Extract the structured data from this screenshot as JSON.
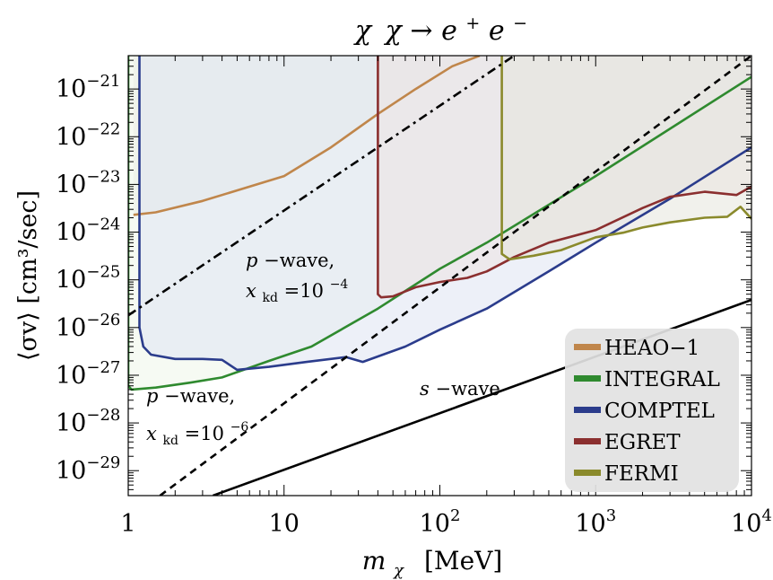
{
  "chart_data": {
    "type": "line",
    "title_parts": {
      "chi1": "χ",
      "chi2": "χ",
      "arrow": "→",
      "e1": "e",
      "plus": "+",
      "e2": "e",
      "minus": "−"
    },
    "xlabel_parts": {
      "m": "m",
      "sub": "χ",
      "unit": "[MeV]"
    },
    "ylabel": "⟨σv⟩  [cm³/sec]",
    "x_scale": "log",
    "y_scale": "log",
    "xlim": [
      1,
      10000
    ],
    "ylim": [
      3e-30,
      5e-21
    ],
    "x_ticks": [
      {
        "value": 1,
        "base": "1",
        "exp": ""
      },
      {
        "value": 10,
        "base": "10",
        "exp": ""
      },
      {
        "value": 100,
        "base": "10",
        "exp": "2"
      },
      {
        "value": 1000,
        "base": "10",
        "exp": "3"
      },
      {
        "value": 10000,
        "base": "10",
        "exp": "4"
      }
    ],
    "y_ticks": [
      {
        "value": 1e-21,
        "base": "10",
        "exp": "−21"
      },
      {
        "value": 1e-22,
        "base": "10",
        "exp": "−22"
      },
      {
        "value": 1e-23,
        "base": "10",
        "exp": "−23"
      },
      {
        "value": 1e-24,
        "base": "10",
        "exp": "−24"
      },
      {
        "value": 1e-25,
        "base": "10",
        "exp": "−25"
      },
      {
        "value": 1e-26,
        "base": "10",
        "exp": "−26"
      },
      {
        "value": 1e-27,
        "base": "10",
        "exp": "−27"
      },
      {
        "value": 1e-28,
        "base": "10",
        "exp": "−28"
      },
      {
        "value": 1e-29,
        "base": "10",
        "exp": "−29"
      }
    ],
    "legend_position": "bottom-right",
    "series": [
      {
        "name": "HEAO−1",
        "color": "#c0864b",
        "fill": "#e8e4e0",
        "points": [
          [
            1.08,
            2.3e-24
          ],
          [
            1.5,
            2.6e-24
          ],
          [
            3,
            4.5e-24
          ],
          [
            10,
            1.5e-23
          ],
          [
            20,
            6e-23
          ],
          [
            40,
            3e-22
          ],
          [
            70,
            1e-21
          ],
          [
            120,
            3e-21
          ],
          [
            180,
            5e-21
          ]
        ]
      },
      {
        "name": "INTEGRAL",
        "color": "#2f8a2f",
        "fill": "#eef5ea",
        "points": [
          [
            1.0,
            5e-21
          ],
          [
            1.0,
            6e-28
          ],
          [
            1.05,
            5e-28
          ],
          [
            1.5,
            5.5e-28
          ],
          [
            2.5,
            7e-28
          ],
          [
            4,
            9e-28
          ],
          [
            8,
            2e-27
          ],
          [
            15,
            4e-27
          ],
          [
            40,
            2.5e-26
          ],
          [
            100,
            1.7e-25
          ],
          [
            200,
            6e-25
          ],
          [
            1000,
            1.5e-23
          ],
          [
            10000,
            1.8e-21
          ]
        ]
      },
      {
        "name": "COMPTEL",
        "color": "#2b3c8c",
        "fill": "#dfe3f2",
        "points": [
          [
            1.18,
            5e-21
          ],
          [
            1.18,
            1e-26
          ],
          [
            1.25,
            4e-27
          ],
          [
            1.4,
            2.7e-27
          ],
          [
            2,
            2.2e-27
          ],
          [
            3,
            2.2e-27
          ],
          [
            4,
            2.1e-27
          ],
          [
            5,
            1.3e-27
          ],
          [
            8,
            1.5e-27
          ],
          [
            14,
            1.9e-27
          ],
          [
            25,
            2.4e-27
          ],
          [
            32,
            1.9e-27
          ],
          [
            60,
            4e-27
          ],
          [
            100,
            9e-27
          ],
          [
            200,
            2.5e-26
          ],
          [
            500,
            1.5e-25
          ],
          [
            1000,
            6e-25
          ],
          [
            3000,
            5e-24
          ],
          [
            10000,
            6e-23
          ]
        ]
      },
      {
        "name": "EGRET",
        "color": "#8b2f2f",
        "fill": "#ede4e2",
        "points": [
          [
            40,
            5e-21
          ],
          [
            40,
            5e-26
          ],
          [
            42,
            4.3e-26
          ],
          [
            50,
            4.5e-26
          ],
          [
            70,
            7e-26
          ],
          [
            100,
            9e-26
          ],
          [
            150,
            1.1e-25
          ],
          [
            200,
            1.5e-25
          ],
          [
            300,
            3e-25
          ],
          [
            500,
            6e-25
          ],
          [
            1000,
            1.1e-24
          ],
          [
            2000,
            3.2e-24
          ],
          [
            3000,
            5.5e-24
          ],
          [
            5000,
            7e-24
          ],
          [
            8000,
            6e-24
          ],
          [
            10000,
            9e-24
          ]
        ]
      },
      {
        "name": "FERMI",
        "color": "#8a8a2c",
        "fill": "#e6e6dc",
        "points": [
          [
            250,
            5e-21
          ],
          [
            250,
            3.5e-25
          ],
          [
            280,
            2.7e-25
          ],
          [
            400,
            3.2e-25
          ],
          [
            600,
            4.2e-25
          ],
          [
            1000,
            7.8e-25
          ],
          [
            1500,
            9.7e-25
          ],
          [
            2000,
            1.25e-24
          ],
          [
            3000,
            1.6e-24
          ],
          [
            5000,
            2e-24
          ],
          [
            7000,
            2.1e-24
          ],
          [
            8500,
            3.4e-24
          ],
          [
            10000,
            1.9e-24
          ]
        ]
      }
    ],
    "reference_lines": [
      {
        "label_parts": {
          "s": "s",
          "dash": "−wave"
        },
        "style": "solid",
        "points": [
          [
            3.5,
            3e-30
          ],
          [
            10000,
            3.8e-26
          ]
        ]
      },
      {
        "label_parts": {
          "p": "p",
          "dash": "−wave,",
          "x": "x",
          "sub": "kd",
          "eq": "=10",
          "exp": "−4"
        },
        "style": "dash-dot",
        "points": [
          [
            1,
            1.8e-26
          ],
          [
            300,
            5e-21
          ]
        ]
      },
      {
        "label_parts": {
          "p": "p",
          "dash": "−wave,",
          "x": "x",
          "sub": "kd",
          "eq": "=10",
          "exp": "−6"
        },
        "style": "dashed",
        "points": [
          [
            1.6,
            3e-30
          ],
          [
            10000,
            5e-21
          ]
        ]
      }
    ]
  }
}
